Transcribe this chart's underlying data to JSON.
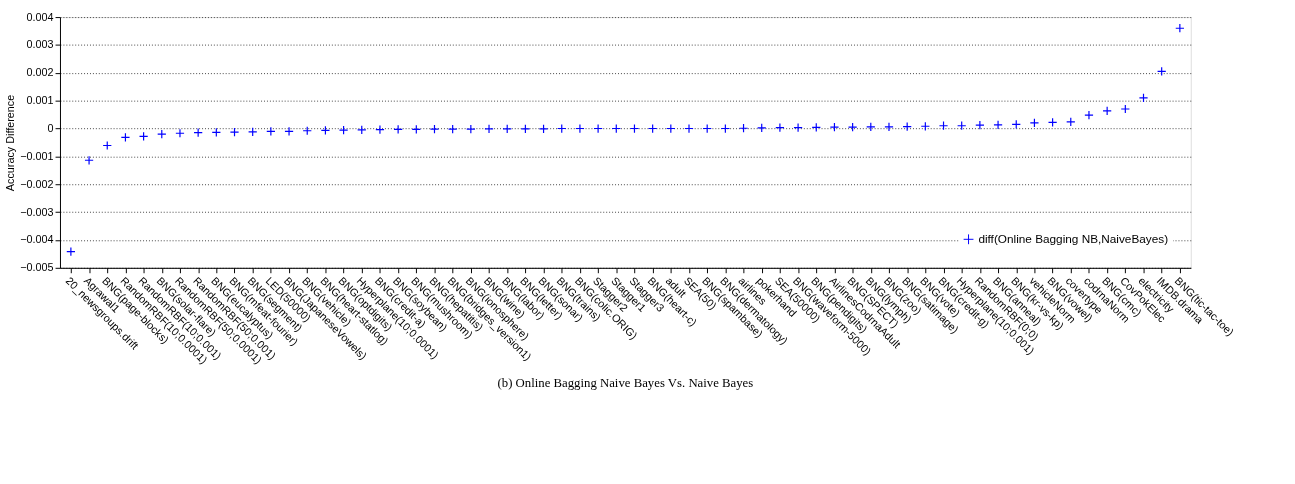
{
  "chart_data": {
    "type": "scatter",
    "ylabel": "Accuracy Difference",
    "annotations": [
      "(b) Online Bagging Naive Bayes Vs. Naive Bayes"
    ],
    "categories": [
      "20_newsgroups.drift",
      "Agrawal1",
      "BNG(page-blocks)",
      "RandomRBF(10;0.0001)",
      "RandomRBF(10;0.001)",
      "BNG(solar-flare)",
      "RandomRBF(50;0.0001)",
      "RandomRBF(50;0.001)",
      "BNG(eucalyptus)",
      "BNG(mfeat-fourier)",
      "BNG(segment)",
      "LED(50000)",
      "BNG(JapaneseVowels)",
      "BNG(vehicle)",
      "BNG(heart-statlog)",
      "BNG(optdigits)",
      "Hyperplane(10;0.0001)",
      "BNG(credit-a)",
      "BNG(soybean)",
      "BNG(mushroom)",
      "BNG(hepatitis)",
      "BNG(bridges_version1)",
      "BNG(ionosphere)",
      "BNG(wine)",
      "BNG(labor)",
      "BNG(letter)",
      "BNG(sonar)",
      "BNG(trains)",
      "BNG(colic.ORIG)",
      "Stagger2",
      "Stagger1",
      "Stagger3",
      "BNG(heart-c)",
      "adult",
      "SEA(50)",
      "BNG(spambase)",
      "BNG(dermatology)",
      "airlines",
      "pokerhand",
      "SEA(50000)",
      "BNG(waveform-5000)",
      "BNG(pendigits)",
      "AirlinesCodrnaAdult",
      "BNG(SPECT)",
      "BNG(lymph)",
      "BNG(zoo)",
      "BNG(satimage)",
      "BNG(vote)",
      "BNG(credit-g)",
      "Hyperplane(10;0.001)",
      "RandomRBF(0;0)",
      "BNG(anneal)",
      "BNG(kr-vs-kp)",
      "vehicleNorm",
      "BNG(vowel)",
      "covertype",
      "codrnaNorm",
      "BNG(cmc)",
      "CovPokElec",
      "electricity",
      "IMDB.drama",
      "BNG(tic-tac-toe)"
    ],
    "series": [
      {
        "name": "diff(Online Bagging NB,NaiveBayes)",
        "color": "#0000ff",
        "values": [
          -0.00442,
          -0.00114,
          -0.00061,
          -0.00032,
          -0.00028,
          -0.0002,
          -0.00017,
          -0.00015,
          -0.00014,
          -0.00013,
          -0.00012,
          -0.0001,
          -0.0001,
          -8e-05,
          -7e-05,
          -6e-05,
          -5e-05,
          -4e-05,
          -3e-05,
          -3e-05,
          -2e-05,
          -2e-05,
          -2e-05,
          -1e-05,
          -1e-05,
          -1e-05,
          -1e-05,
          0,
          0,
          0,
          0,
          0,
          0,
          0,
          0,
          0,
          0,
          1e-05,
          2e-05,
          3e-05,
          3e-05,
          4e-05,
          5e-05,
          5e-05,
          6e-05,
          6e-05,
          7e-05,
          8e-05,
          0.0001,
          0.0001,
          0.00012,
          0.00013,
          0.00015,
          0.0002,
          0.00022,
          0.00024,
          0.00048,
          0.00063,
          0.0007,
          0.0011,
          0.00205,
          0.0036
        ]
      }
    ],
    "ylim": [
      -0.005,
      0.004
    ],
    "yticks": [
      -0.005,
      -0.004,
      -0.003,
      -0.002,
      -0.001,
      0,
      0.001,
      0.002,
      0.003,
      0.004
    ],
    "grid": "y",
    "legend": "bottom right",
    "marker": "cross"
  }
}
